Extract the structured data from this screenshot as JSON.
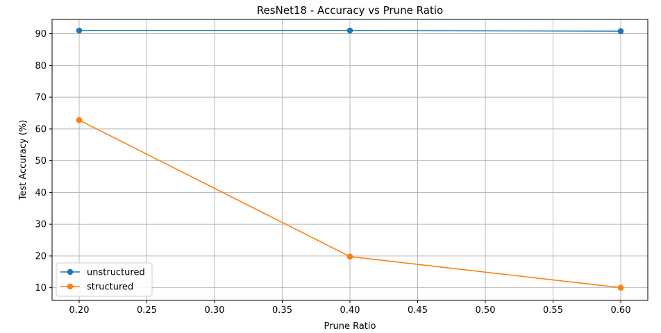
{
  "chart_data": {
    "type": "line",
    "title": "ResNet18 - Accuracy vs Prune Ratio",
    "xlabel": "Prune Ratio",
    "ylabel": "Test Accuracy (%)",
    "x": [
      0.2,
      0.4,
      0.6
    ],
    "xlim": [
      0.18,
      0.62
    ],
    "ylim": [
      6,
      94.5
    ],
    "xticks": [
      0.2,
      0.25,
      0.3,
      0.35,
      0.4,
      0.45,
      0.5,
      0.55,
      0.6
    ],
    "xtick_labels": [
      "0.20",
      "0.25",
      "0.30",
      "0.35",
      "0.40",
      "0.45",
      "0.50",
      "0.55",
      "0.60"
    ],
    "yticks": [
      10,
      20,
      30,
      40,
      50,
      60,
      70,
      80,
      90
    ],
    "ytick_labels": [
      "10",
      "20",
      "30",
      "40",
      "50",
      "60",
      "70",
      "80",
      "90"
    ],
    "grid": true,
    "legend_position": "lower-left",
    "series": [
      {
        "name": "unstructured",
        "color": "#1f77b4",
        "marker": "circle",
        "values": [
          91.0,
          91.0,
          90.8
        ]
      },
      {
        "name": "structured",
        "color": "#ff7f0e",
        "marker": "circle",
        "values": [
          62.8,
          19.8,
          10.0
        ]
      }
    ]
  }
}
